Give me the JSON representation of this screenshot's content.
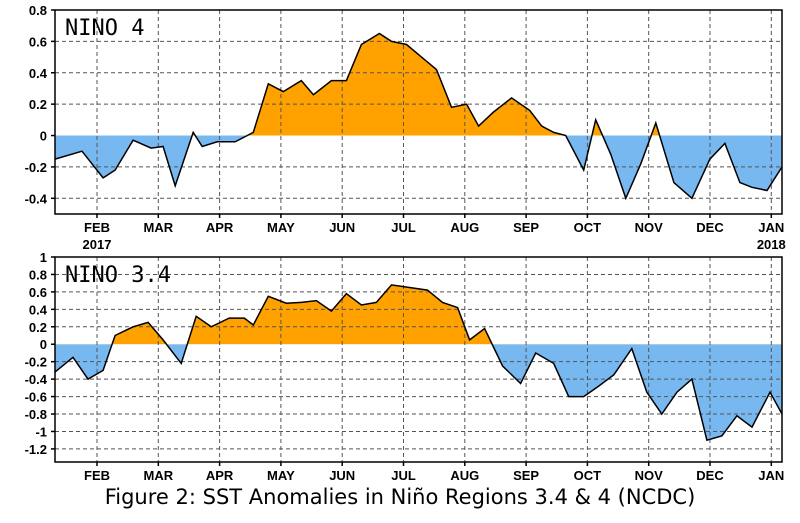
{
  "caption": "Figure 2: SST Anomalies in Niño Regions 3.4 & 4 (NCDC)",
  "colors": {
    "positive": "#ffa200",
    "negative": "#78b8f0",
    "line": "#000000",
    "grid": "#555555"
  },
  "chart_data": [
    {
      "type": "area",
      "title": "NINO 4",
      "months": [
        "FEB",
        "MAR",
        "APR",
        "MAY",
        "JUN",
        "JUL",
        "AUG",
        "SEP",
        "OCT",
        "NOV",
        "DEC",
        "JAN"
      ],
      "year_labels": {
        "FEB": "2017",
        "JAN": "2018"
      },
      "ylim": [
        -0.5,
        0.8
      ],
      "yticks": [
        "0.8",
        "0.6",
        "0.4",
        "0.2",
        "0",
        "-0.2",
        "-0.4"
      ],
      "grid": true,
      "x": [
        0,
        0.45,
        0.8,
        1.0,
        1.3,
        1.6,
        1.8,
        2.0,
        2.3,
        2.45,
        2.7,
        3.0,
        3.3,
        3.55,
        3.8,
        4.1,
        4.3,
        4.6,
        4.85,
        5.1,
        5.4,
        5.6,
        5.85,
        6.1,
        6.35,
        6.6,
        6.85,
        7.05,
        7.3,
        7.6,
        7.9,
        8.1,
        8.3,
        8.5,
        8.8,
        9.0,
        9.25,
        9.5,
        9.75,
        10.0,
        10.3,
        10.6,
        10.9,
        11.15,
        11.4
      ],
      "y": [
        -0.15,
        -0.1,
        -0.27,
        -0.22,
        -0.03,
        -0.08,
        -0.07,
        -0.32,
        0.02,
        -0.07,
        -0.04,
        -0.04,
        0.02,
        0.33,
        0.28,
        0.35,
        0.26,
        0.35,
        0.35,
        0.58,
        0.65,
        0.6,
        0.58,
        0.5,
        0.42,
        0.18,
        0.2,
        0.06,
        0.15,
        0.24,
        0.16,
        0.06,
        0.02,
        0.0,
        -0.22,
        0.1,
        -0.12,
        -0.4,
        -0.18,
        0.08,
        -0.3,
        -0.4,
        -0.15,
        -0.05,
        -0.3
      ],
      "x_end": [
        11.6,
        11.85,
        12.1
      ],
      "y_end": [
        -0.33,
        -0.35,
        -0.2
      ]
    },
    {
      "type": "area",
      "title": "NINO 3.4",
      "months": [
        "FEB",
        "MAR",
        "APR",
        "MAY",
        "JUN",
        "JUL",
        "AUG",
        "SEP",
        "OCT",
        "NOV",
        "DEC",
        "JAN"
      ],
      "ylim": [
        -1.35,
        1.0
      ],
      "yticks": [
        "1",
        "0.8",
        "0.6",
        "0.4",
        "0.2",
        "0",
        "-0.2",
        "-0.4",
        "-0.6",
        "-0.8",
        "-1",
        "-1.2"
      ],
      "grid": true,
      "x": [
        0,
        0.3,
        0.55,
        0.8,
        1.0,
        1.3,
        1.55,
        1.8,
        2.1,
        2.35,
        2.6,
        2.9,
        3.15,
        3.3,
        3.55,
        3.85,
        4.1,
        4.35,
        4.6,
        4.85,
        5.1,
        5.35,
        5.6,
        5.9,
        6.2,
        6.45,
        6.7,
        6.9,
        7.15,
        7.45,
        7.75,
        8.0,
        8.3,
        8.55,
        8.8,
        9.05,
        9.3,
        9.6,
        9.85,
        10.1,
        10.35,
        10.6,
        10.85,
        11.1,
        11.35
      ],
      "y": [
        -0.32,
        -0.15,
        -0.4,
        -0.3,
        0.1,
        0.2,
        0.25,
        0.05,
        -0.22,
        0.32,
        0.2,
        0.3,
        0.3,
        0.22,
        0.55,
        0.47,
        0.48,
        0.5,
        0.38,
        0.58,
        0.45,
        0.48,
        0.68,
        0.65,
        0.62,
        0.48,
        0.42,
        0.05,
        0.18,
        -0.25,
        -0.45,
        -0.1,
        -0.22,
        -0.6,
        -0.6,
        -0.48,
        -0.35,
        -0.05,
        -0.55,
        -0.8,
        -0.55,
        -0.4,
        -1.1,
        -1.05,
        -0.82
      ],
      "x_end": [
        11.6,
        11.9,
        12.1
      ],
      "y_end": [
        -0.95,
        -0.55,
        -0.8
      ]
    }
  ]
}
